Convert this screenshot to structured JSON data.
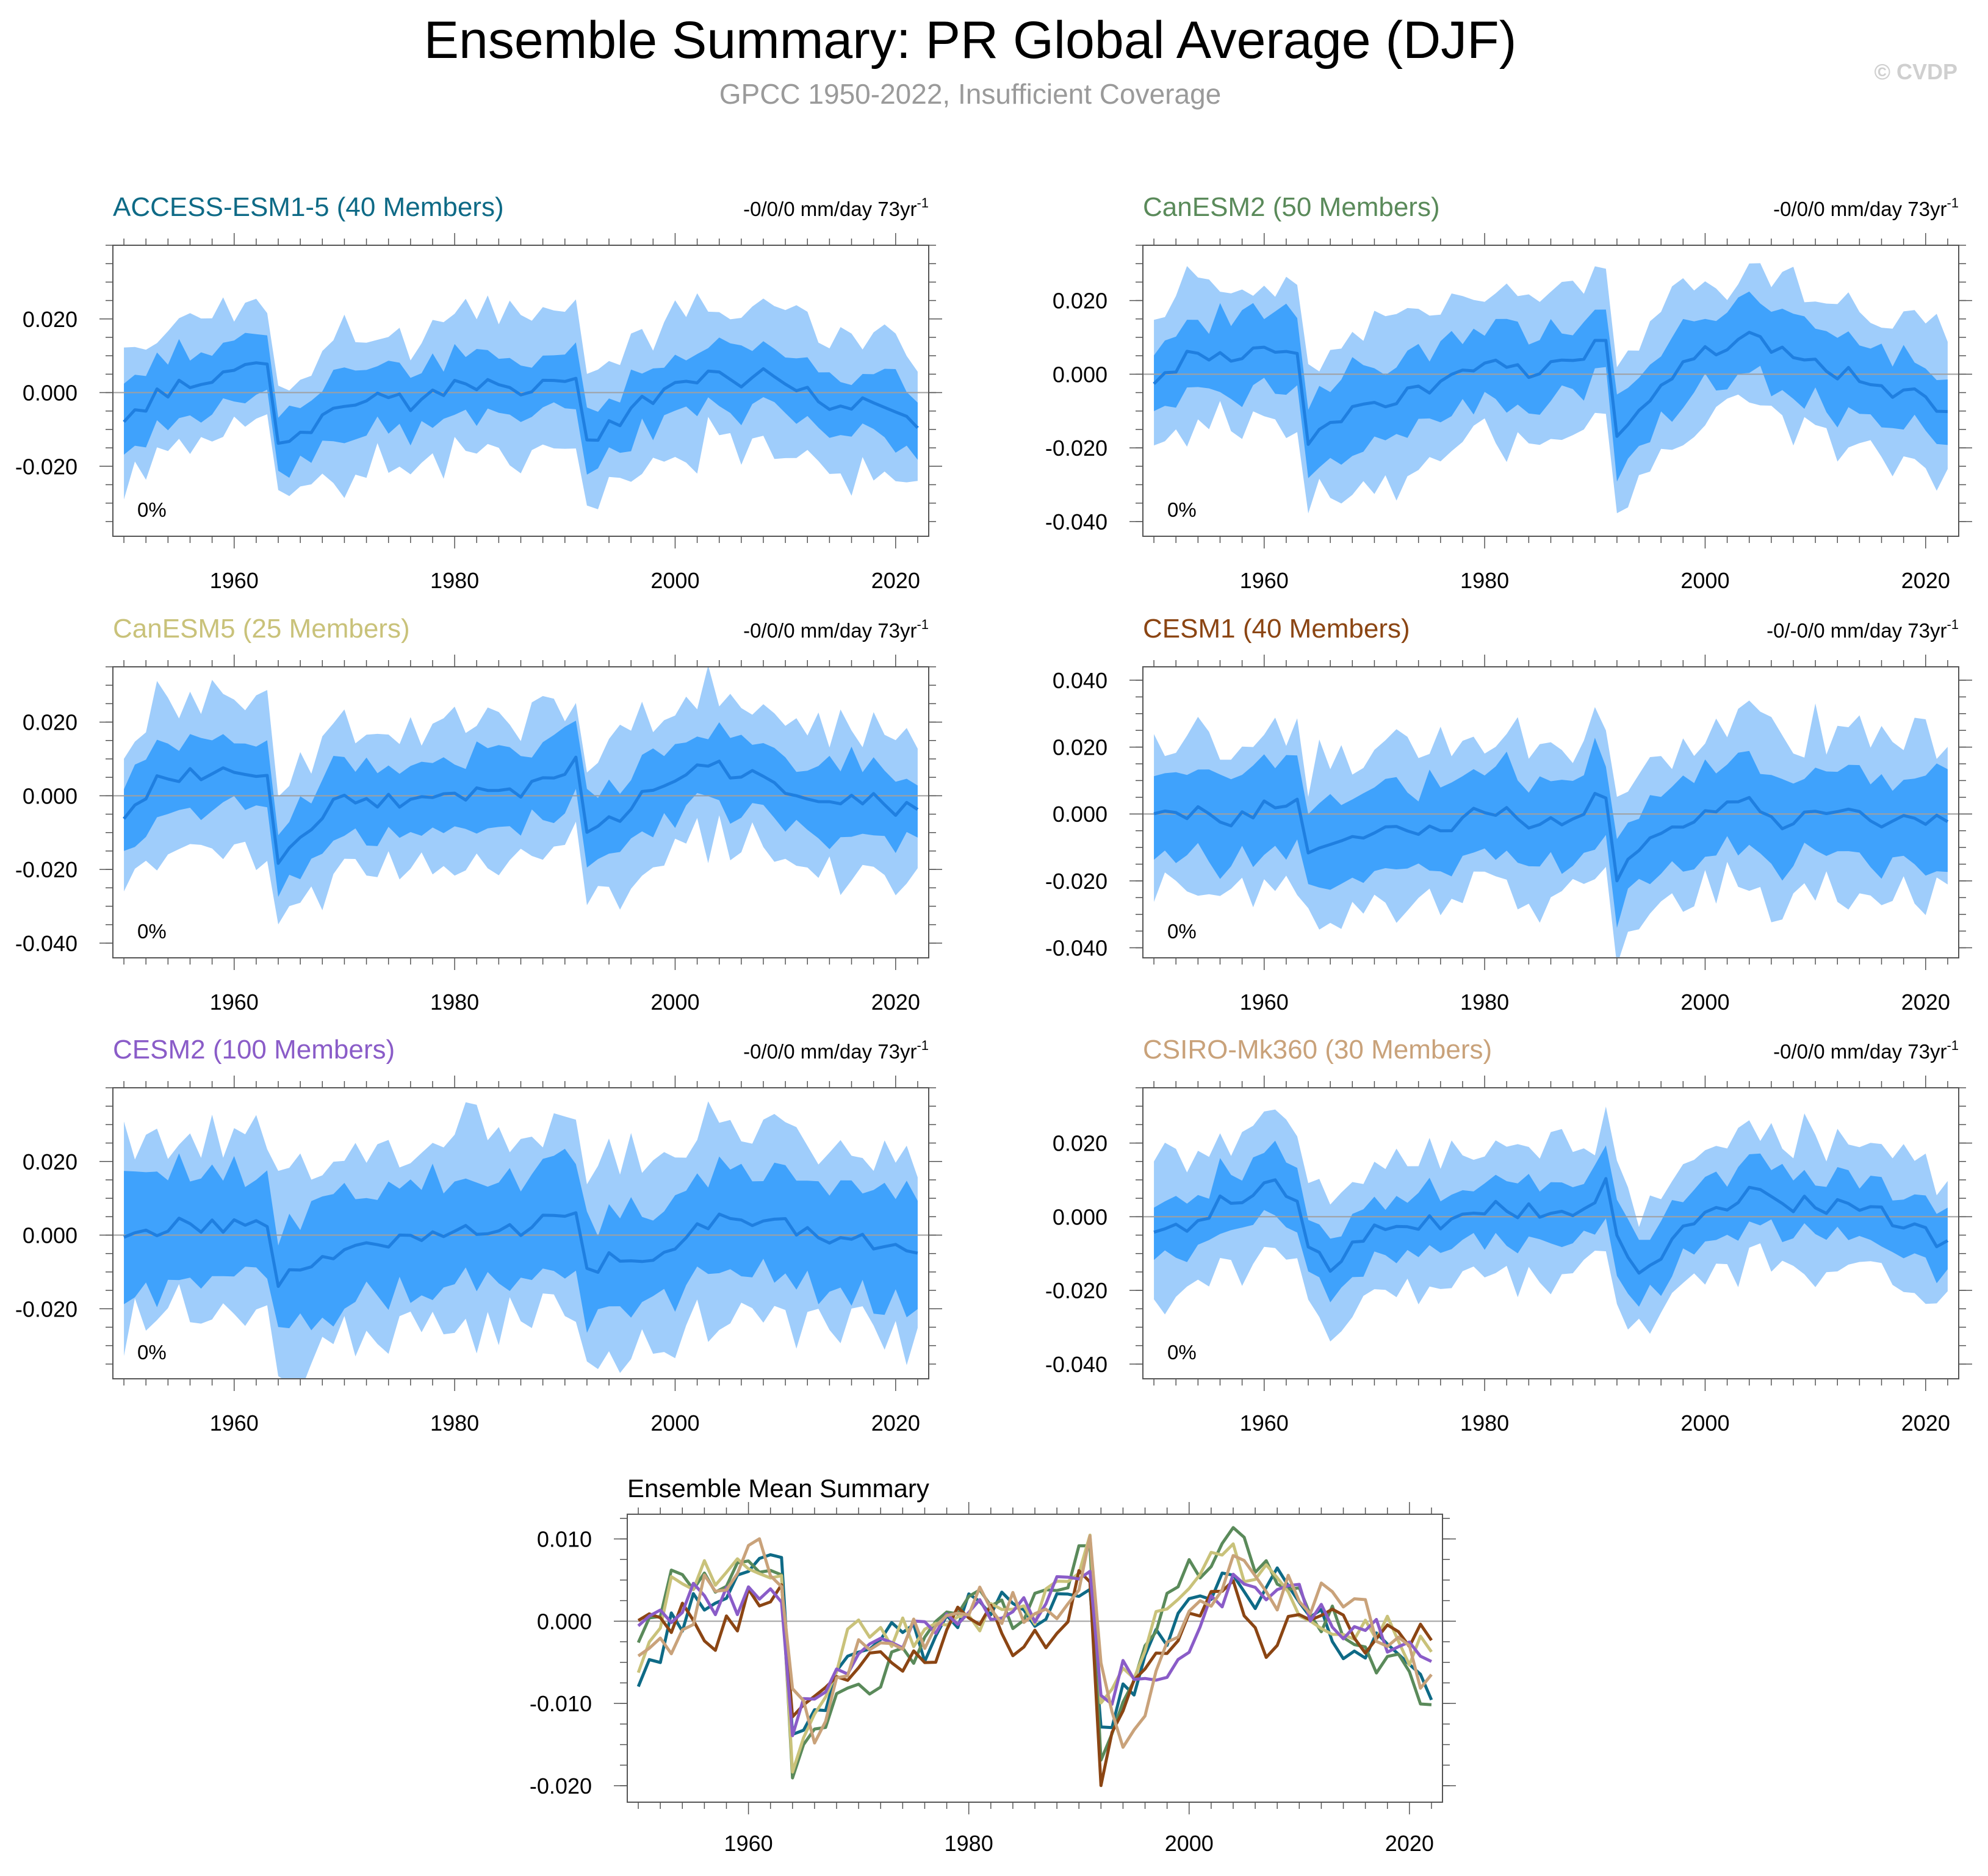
{
  "figure": {
    "title": "Ensemble Summary: PR Global Average (DJF)",
    "subtitle": "GPCC 1950-2022, Insufficient Coverage",
    "watermark": "© CVDP"
  },
  "colors": {
    "band_outer": "#9fcdfb",
    "band_inner": "#3fa2fc",
    "mean_line": "#1f7fe0",
    "zero_line": "#a0a0a0",
    "axis": "#555555"
  },
  "chart_data": [
    {
      "type": "area",
      "panel": "ACCESS-ESM1-5",
      "title": "ACCESS-ESM1-5 (40 Members)",
      "title_color": "#0e6a86",
      "trend_label": "-0/0/0 mm/day 73yr",
      "trend_sup": "-1",
      "percent_label": "0%",
      "ylim": [
        -0.039,
        0.04
      ],
      "yticks": [
        -0.02,
        0.0,
        0.02
      ],
      "ytick_labels": [
        "-0.020",
        "0.000",
        "0.020"
      ],
      "xlim": [
        1949,
        2023
      ],
      "xticks": [
        1960,
        1980,
        2000,
        2020
      ],
      "keypoints": {
        "years": [
          1950,
          1953,
          1957,
          1961,
          1963,
          1964,
          1968,
          1972,
          1976,
          1980,
          1985,
          1989,
          1991,
          1992,
          1994,
          1997,
          2001,
          2005,
          2009,
          2013,
          2018,
          2022
        ],
        "mean": [
          -0.007,
          -0.001,
          0.004,
          0.006,
          0.009,
          -0.016,
          -0.006,
          -0.001,
          -0.003,
          0.003,
          0.001,
          0.003,
          0.004,
          -0.013,
          -0.01,
          -0.003,
          0.004,
          0.003,
          0.006,
          -0.002,
          -0.003,
          -0.008
        ]
      },
      "spread": {
        "inner": 0.0085,
        "outer": 0.0175
      }
    },
    {
      "type": "area",
      "panel": "CanESM2",
      "title": "CanESM2 (50 Members)",
      "title_color": "#5a8a5a",
      "trend_label": "-0/0/0 mm/day 73yr",
      "trend_sup": "-1",
      "percent_label": "0%",
      "ylim": [
        -0.044,
        0.035
      ],
      "yticks": [
        -0.04,
        -0.02,
        0.0,
        0.02
      ],
      "ytick_labels": [
        "-0.040",
        "-0.020",
        "0.000",
        "0.020"
      ],
      "xlim": [
        1949,
        2023
      ],
      "xticks": [
        1960,
        1980,
        2000,
        2020
      ],
      "keypoints": {
        "years": [
          1950,
          1954,
          1958,
          1962,
          1963,
          1964,
          1967,
          1972,
          1976,
          1980,
          1984,
          1989,
          1991,
          1992,
          1995,
          1999,
          2004,
          2008,
          2013,
          2017,
          2022
        ],
        "mean": [
          -0.002,
          0.006,
          0.005,
          0.008,
          0.008,
          -0.018,
          -0.011,
          -0.007,
          -0.002,
          0.003,
          0.001,
          0.006,
          0.008,
          -0.017,
          -0.006,
          0.004,
          0.009,
          0.006,
          0.0,
          -0.004,
          -0.01
        ]
      },
      "spread": {
        "inner": 0.01,
        "outer": 0.019
      }
    },
    {
      "type": "area",
      "panel": "CanESM5",
      "title": "CanESM5 (25 Members)",
      "title_color": "#c9c27a",
      "trend_label": "-0/0/0 mm/day 73yr",
      "trend_sup": "-1",
      "percent_label": "0%",
      "ylim": [
        -0.044,
        0.035
      ],
      "yticks": [
        -0.04,
        -0.02,
        0.0,
        0.02
      ],
      "ytick_labels": [
        "-0.040",
        "-0.020",
        "0.000",
        "0.020"
      ],
      "xlim": [
        1949,
        2023
      ],
      "xticks": [
        1960,
        1980,
        2000,
        2020
      ],
      "keypoints": {
        "years": [
          1950,
          1953,
          1957,
          1961,
          1963,
          1964,
          1968,
          1972,
          1976,
          1980,
          1985,
          1989,
          1991,
          1992,
          1994,
          1998,
          2002,
          2006,
          2010,
          2014,
          2018,
          2022
        ],
        "mean": [
          -0.006,
          0.003,
          0.006,
          0.005,
          0.004,
          -0.019,
          -0.004,
          0.0,
          -0.003,
          0.001,
          0.001,
          0.004,
          0.008,
          -0.01,
          -0.008,
          0.001,
          0.008,
          0.006,
          0.003,
          -0.002,
          -0.001,
          -0.005
        ]
      },
      "spread": {
        "inner": 0.0095,
        "outer": 0.0195
      }
    },
    {
      "type": "area",
      "panel": "CESM1",
      "title": "CESM1 (40 Members)",
      "title_color": "#8b4513",
      "trend_label": "-0/-0/0 mm/day 73yr",
      "trend_sup": "-1",
      "percent_label": "0%",
      "ylim": [
        -0.043,
        0.044
      ],
      "yticks": [
        -0.04,
        -0.02,
        0.0,
        0.02,
        0.04
      ],
      "ytick_labels": [
        "-0.040",
        "-0.020",
        "0.000",
        "0.020",
        "0.040"
      ],
      "xlim": [
        1949,
        2023
      ],
      "xticks": [
        1960,
        1980,
        2000,
        2020
      ],
      "keypoints": {
        "years": [
          1950,
          1953,
          1957,
          1961,
          1963,
          1964,
          1967,
          1971,
          1976,
          1980,
          1984,
          1988,
          1991,
          1992,
          1995,
          1999,
          2003,
          2007,
          2011,
          2015,
          2019,
          2022
        ],
        "mean": [
          0.0,
          0.001,
          -0.002,
          0.004,
          0.004,
          -0.014,
          -0.007,
          -0.003,
          -0.004,
          0.001,
          -0.002,
          -0.001,
          0.006,
          -0.02,
          -0.006,
          -0.002,
          0.004,
          -0.002,
          0.002,
          -0.002,
          -0.003,
          0.0
        ]
      },
      "spread": {
        "inner": 0.0125,
        "outer": 0.023
      }
    },
    {
      "type": "area",
      "panel": "CESM2",
      "title": "CESM2 (100 Members)",
      "title_color": "#8a5cc8",
      "trend_label": "-0/0/0 mm/day 73yr",
      "trend_sup": "-1",
      "percent_label": "0%",
      "ylim": [
        -0.039,
        0.04
      ],
      "yticks": [
        -0.02,
        0.0,
        0.02
      ],
      "ytick_labels": [
        "-0.020",
        "0.000",
        "0.020"
      ],
      "xlim": [
        1949,
        2023
      ],
      "xticks": [
        1960,
        1980,
        2000,
        2020
      ],
      "keypoints": {
        "years": [
          1950,
          1954,
          1958,
          1962,
          1963,
          1964,
          1967,
          1971,
          1976,
          1980,
          1984,
          1988,
          1991,
          1992,
          1995,
          1999,
          2003,
          2007,
          2011,
          2015,
          2019,
          2022
        ],
        "mean": [
          -0.001,
          0.003,
          0.002,
          0.003,
          0.003,
          -0.013,
          -0.008,
          -0.002,
          -0.001,
          0.002,
          0.001,
          0.003,
          0.006,
          -0.009,
          -0.006,
          -0.004,
          0.003,
          0.004,
          0.002,
          -0.001,
          -0.002,
          -0.004
        ]
      },
      "spread": {
        "inner": 0.014,
        "outer": 0.025
      }
    },
    {
      "type": "area",
      "panel": "CSIRO-Mk360",
      "title": "CSIRO-Mk360 (30 Members)",
      "title_color": "#c9a27a",
      "trend_label": "-0/0/0 mm/day 73yr",
      "trend_sup": "-1",
      "percent_label": "0%",
      "ylim": [
        -0.044,
        0.035
      ],
      "yticks": [
        -0.04,
        -0.02,
        0.0,
        0.02
      ],
      "ytick_labels": [
        "-0.040",
        "-0.020",
        "0.000",
        "0.020"
      ],
      "xlim": [
        1949,
        2023
      ],
      "xticks": [
        1960,
        1980,
        2000,
        2020
      ],
      "keypoints": {
        "years": [
          1950,
          1953,
          1957,
          1961,
          1963,
          1964,
          1966,
          1970,
          1975,
          1980,
          1984,
          1988,
          1991,
          1992,
          1994,
          1999,
          2003,
          2007,
          2011,
          2015,
          2019,
          2022
        ],
        "mean": [
          -0.005,
          -0.002,
          0.005,
          0.008,
          0.006,
          -0.009,
          -0.015,
          -0.003,
          -0.002,
          0.002,
          0.001,
          0.0,
          0.009,
          -0.005,
          -0.015,
          -0.001,
          0.006,
          0.004,
          0.003,
          0.002,
          -0.003,
          -0.007
        ]
      },
      "spread": {
        "inner": 0.008,
        "outer": 0.017
      }
    },
    {
      "type": "line",
      "panel": "ensemble-mean-summary",
      "title": "Ensemble Mean Summary",
      "ylim": [
        -0.022,
        0.013
      ],
      "yticks": [
        -0.02,
        -0.01,
        0.0,
        0.01
      ],
      "ytick_labels": [
        "-0.020",
        "-0.010",
        "0.000",
        "0.010"
      ],
      "xlim": [
        1949,
        2023
      ],
      "xticks": [
        1960,
        1980,
        2000,
        2020
      ],
      "series": [
        {
          "name": "ACCESS-ESM1-5",
          "color": "#0e6a86",
          "ref": 0
        },
        {
          "name": "CanESM2",
          "color": "#5a8a5a",
          "ref": 1
        },
        {
          "name": "CanESM5",
          "color": "#c9c27a",
          "ref": 2
        },
        {
          "name": "CESM1",
          "color": "#8b4513",
          "ref": 3
        },
        {
          "name": "CESM2",
          "color": "#8a5cc8",
          "ref": 4
        },
        {
          "name": "CSIRO-Mk360",
          "color": "#c9a27a",
          "ref": 5
        }
      ]
    }
  ]
}
